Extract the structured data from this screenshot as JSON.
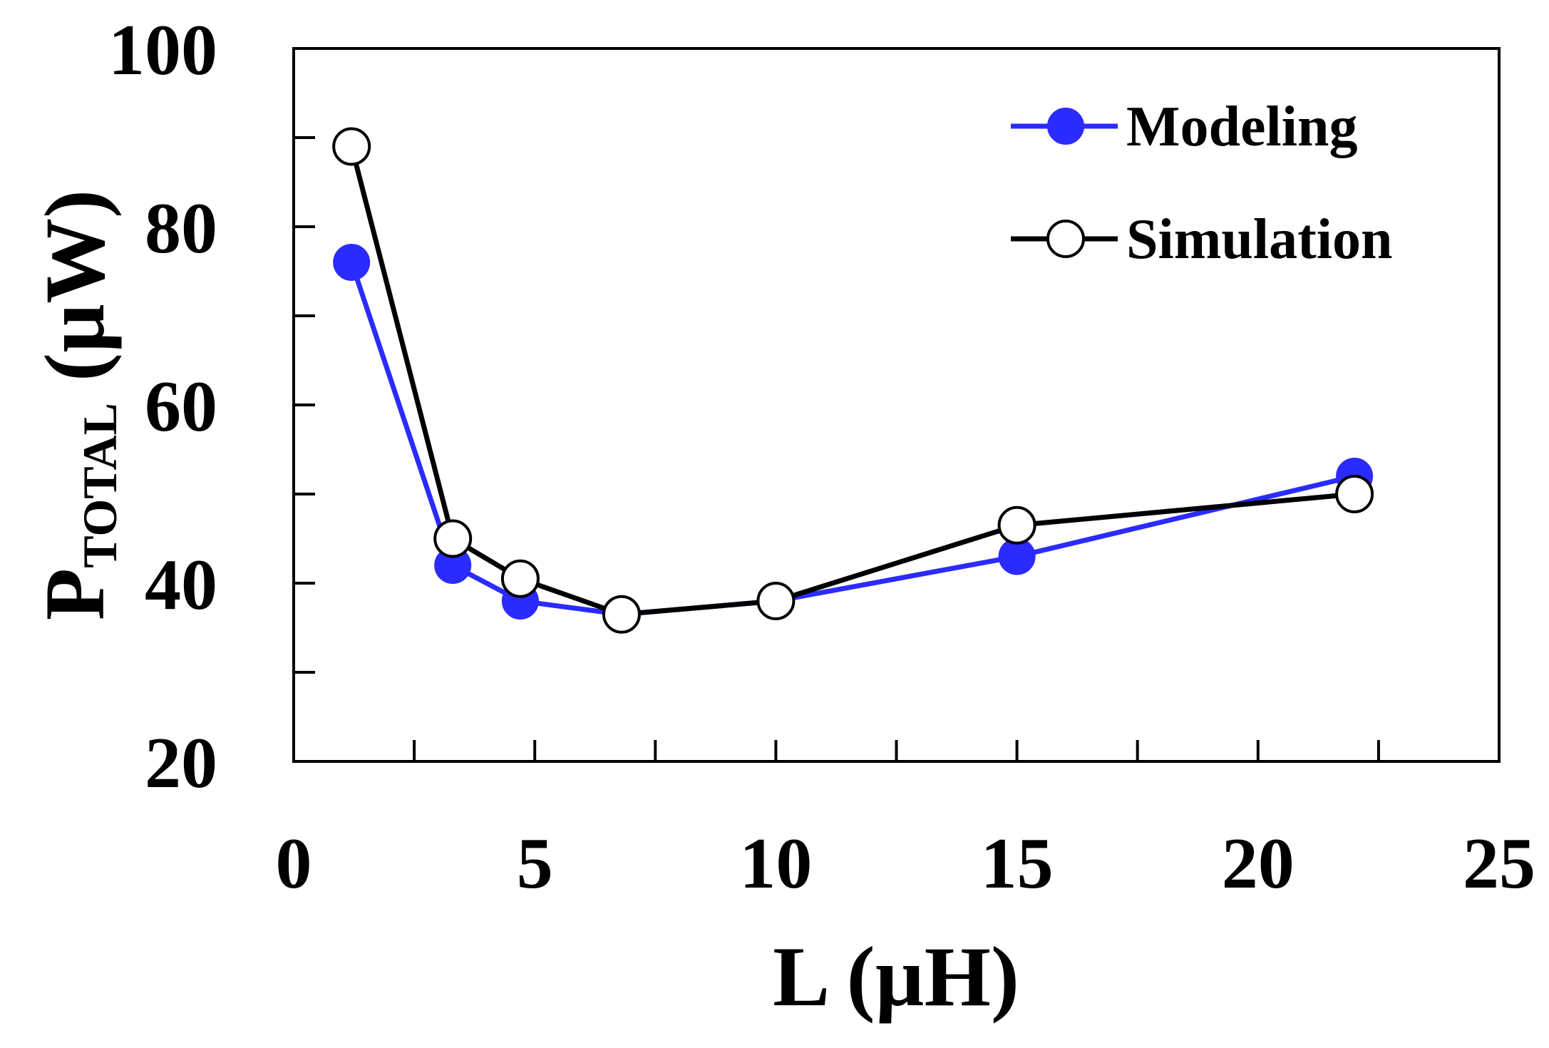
{
  "chart_data": {
    "type": "line",
    "title": "",
    "xlabel": "L (µH)",
    "ylabel": {
      "main": "P",
      "subscript": "TOTAL",
      "unit": "(µW)"
    },
    "xlim": [
      0,
      25
    ],
    "ylim": [
      20,
      100
    ],
    "xticks": [
      0,
      5,
      10,
      15,
      20,
      25
    ],
    "yticks": [
      20,
      40,
      60,
      80,
      100
    ],
    "x_minor_step": 2.5,
    "y_minor_step": 10,
    "grid": false,
    "legend_position": "top-right",
    "series": [
      {
        "name": "Modeling",
        "color": "#2b2bff",
        "marker": "filled-circle",
        "x": [
          1.2,
          3.3,
          4.7,
          6.8,
          10,
          15,
          22
        ],
        "y": [
          76,
          42,
          38,
          36.5,
          38,
          43,
          52
        ]
      },
      {
        "name": "Simulation",
        "color": "#000000",
        "marker": "open-circle",
        "x": [
          1.2,
          3.3,
          4.7,
          6.8,
          10,
          15,
          22
        ],
        "y": [
          89,
          45,
          40.5,
          36.5,
          38,
          46.5,
          50
        ]
      }
    ]
  }
}
